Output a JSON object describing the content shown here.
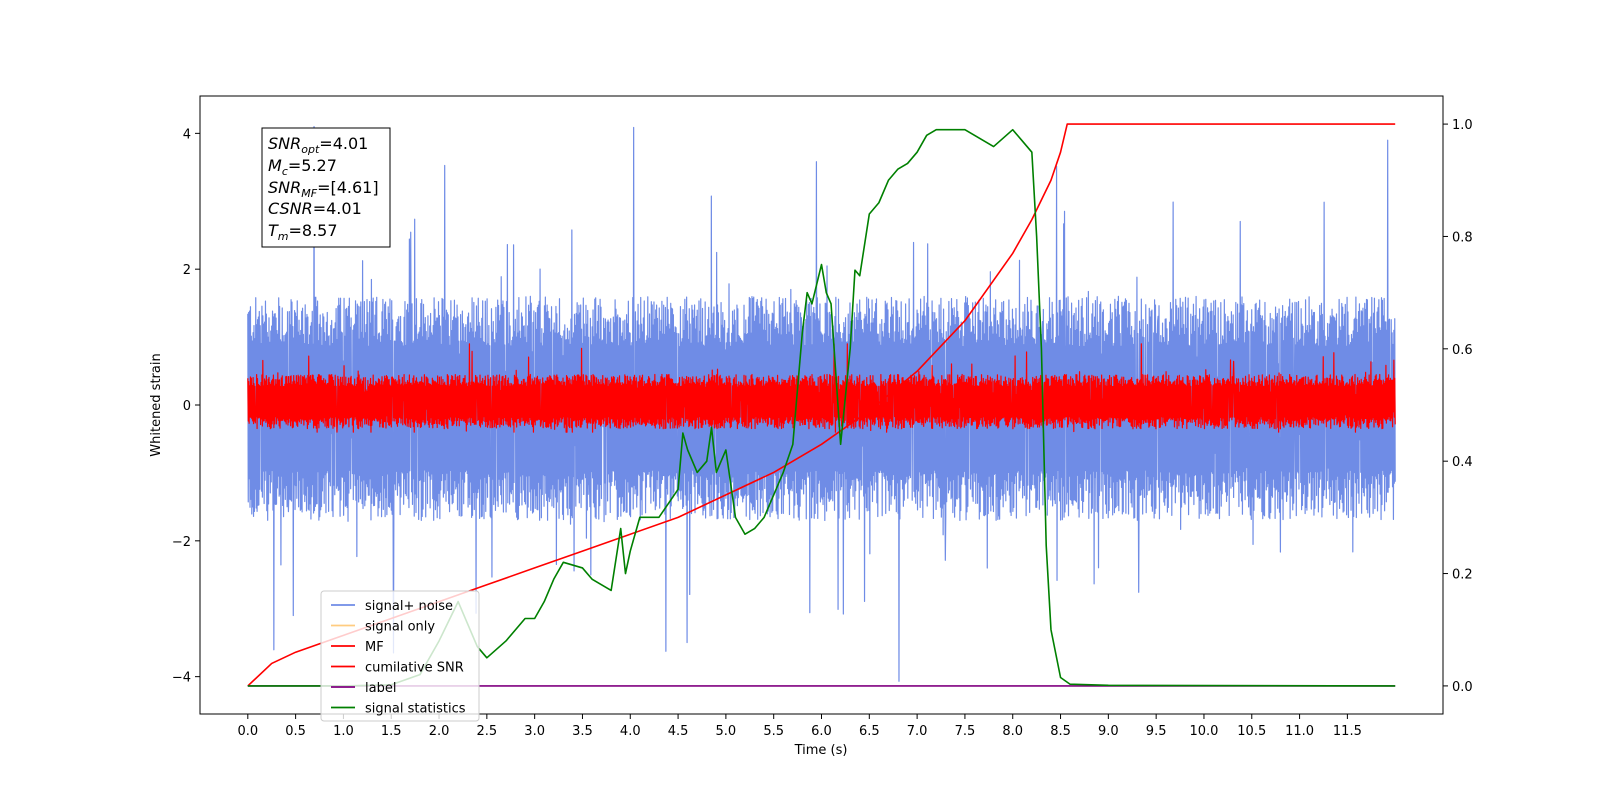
{
  "chart_data": {
    "type": "line",
    "xlabel": "Time (s)",
    "ylabel": "Whitened strain",
    "xlim": [
      -0.5,
      12.5
    ],
    "ylim": [
      -4.55,
      4.55
    ],
    "y2lim": [
      -0.05,
      1.05
    ],
    "x_ticks": [
      0.0,
      0.5,
      1.0,
      1.5,
      2.0,
      2.5,
      3.0,
      3.5,
      4.0,
      4.5,
      5.0,
      5.5,
      6.0,
      6.5,
      7.0,
      7.5,
      8.0,
      8.5,
      9.0,
      9.5,
      10.0,
      10.5,
      11.0,
      11.5
    ],
    "x_tick_labels": [
      "0.0",
      "0.5",
      "1.0",
      "1.5",
      "2.0",
      "2.5",
      "3.0",
      "3.5",
      "4.0",
      "4.5",
      "5.0",
      "5.5",
      "6.0",
      "6.5",
      "7.0",
      "7.5",
      "8.0",
      "8.5",
      "9.0",
      "9.5",
      "10.0",
      "10.5",
      "11.0",
      "11.5"
    ],
    "y_ticks": [
      -4,
      -2,
      0,
      2,
      4
    ],
    "y_tick_labels": [
      "−4",
      "−2",
      "0",
      "2",
      "4"
    ],
    "y2_ticks": [
      0.0,
      0.2,
      0.4,
      0.6,
      0.8,
      1.0
    ],
    "y2_tick_labels": [
      "0.0",
      "0.2",
      "0.4",
      "0.6",
      "0.8",
      "1.0"
    ],
    "grid": false,
    "legend_position": "lower-left",
    "series": [
      {
        "name": "signal+ noise",
        "color": "#6f8ce6",
        "axis": "left",
        "style": "noise",
        "x_range": [
          0.0,
          12.0
        ],
        "envelope_typical": [
          -1.7,
          1.6
        ],
        "extremes": [
          -4.15,
          4.1
        ]
      },
      {
        "name": "signal only",
        "color": "#ffcc80",
        "axis": "left",
        "style": "hidden"
      },
      {
        "name": "MF",
        "color": "#ff0000",
        "axis": "left",
        "style": "noise",
        "x_range": [
          0.0,
          12.0
        ],
        "envelope_typical": [
          -0.35,
          0.45
        ],
        "extremes": [
          -0.4,
          0.9
        ]
      },
      {
        "name": "cumilative SNR",
        "color": "#ff0000",
        "axis": "right",
        "style": "line",
        "x": [
          0.0,
          0.25,
          0.5,
          1.0,
          1.5,
          2.0,
          2.5,
          3.0,
          3.5,
          4.0,
          4.5,
          5.0,
          5.5,
          6.0,
          6.5,
          7.0,
          7.5,
          8.0,
          8.2,
          8.4,
          8.5,
          8.57,
          12.0
        ],
        "y": [
          0.0,
          0.04,
          0.06,
          0.09,
          0.12,
          0.15,
          0.18,
          0.21,
          0.24,
          0.27,
          0.3,
          0.34,
          0.38,
          0.43,
          0.49,
          0.56,
          0.65,
          0.77,
          0.83,
          0.9,
          0.95,
          1.0,
          1.0
        ]
      },
      {
        "name": "label",
        "color": "#800080",
        "axis": "right",
        "style": "line",
        "x": [
          0.0,
          12.0
        ],
        "y": [
          0.0,
          0.0
        ]
      },
      {
        "name": "signal statistics",
        "color": "#008000",
        "axis": "right",
        "style": "line",
        "x": [
          0.0,
          1.0,
          1.5,
          1.8,
          2.0,
          2.2,
          2.4,
          2.5,
          2.7,
          2.9,
          3.0,
          3.1,
          3.2,
          3.3,
          3.5,
          3.6,
          3.7,
          3.8,
          3.9,
          3.95,
          4.0,
          4.1,
          4.3,
          4.5,
          4.55,
          4.6,
          4.7,
          4.8,
          4.85,
          4.9,
          5.0,
          5.1,
          5.2,
          5.3,
          5.4,
          5.5,
          5.6,
          5.7,
          5.8,
          5.85,
          5.9,
          6.0,
          6.05,
          6.1,
          6.2,
          6.3,
          6.35,
          6.4,
          6.5,
          6.6,
          6.7,
          6.8,
          6.9,
          7.0,
          7.1,
          7.2,
          7.3,
          7.5,
          7.6,
          7.7,
          7.8,
          8.0,
          8.1,
          8.2,
          8.25,
          8.3,
          8.35,
          8.4,
          8.5,
          8.6,
          9.0,
          12.0
        ],
        "y": [
          0.0,
          0.0,
          0.002,
          0.02,
          0.08,
          0.15,
          0.07,
          0.05,
          0.08,
          0.12,
          0.12,
          0.15,
          0.19,
          0.22,
          0.21,
          0.19,
          0.18,
          0.17,
          0.28,
          0.2,
          0.24,
          0.3,
          0.3,
          0.35,
          0.45,
          0.42,
          0.38,
          0.4,
          0.46,
          0.38,
          0.42,
          0.3,
          0.27,
          0.28,
          0.3,
          0.34,
          0.38,
          0.43,
          0.63,
          0.7,
          0.68,
          0.75,
          0.7,
          0.68,
          0.43,
          0.6,
          0.74,
          0.73,
          0.84,
          0.86,
          0.9,
          0.92,
          0.93,
          0.95,
          0.98,
          0.99,
          0.99,
          0.99,
          0.98,
          0.97,
          0.96,
          0.99,
          0.97,
          0.95,
          0.8,
          0.6,
          0.25,
          0.1,
          0.015,
          0.003,
          0.001,
          0.0
        ]
      }
    ]
  },
  "info_box": {
    "snr_opt": {
      "main": "SNR",
      "sub": "opt",
      "value": "=4.01"
    },
    "mc": {
      "main": "M",
      "sub": "c",
      "value": "=5.27"
    },
    "snr_mf": {
      "main": "SNR",
      "sub": "MF",
      "value": "=[4.61]"
    },
    "csnr": {
      "main": "CSNR",
      "sub": "",
      "value": "=4.01"
    },
    "tm": {
      "main": "T",
      "sub": "m",
      "value": "=8.57"
    }
  }
}
